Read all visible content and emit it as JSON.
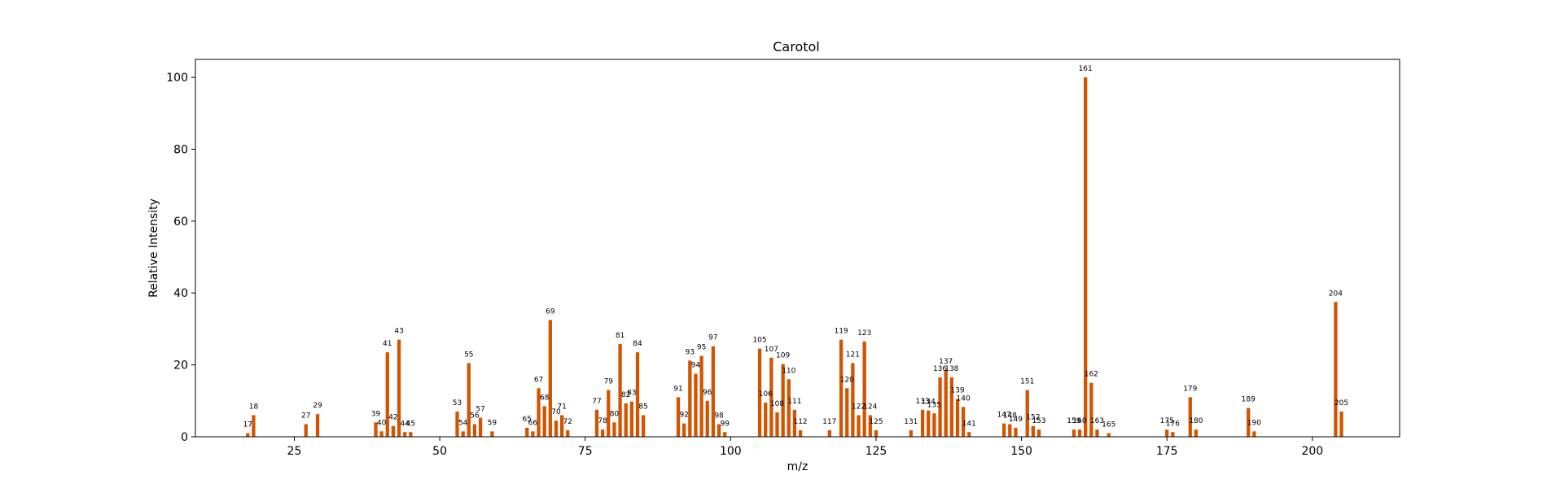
{
  "chart_data": {
    "type": "bar",
    "title": "Carotol",
    "xlabel": "m/z",
    "ylabel": "Relative Intensity",
    "xlim": [
      8,
      215
    ],
    "ylim": [
      0,
      105
    ],
    "xticks": [
      25,
      50,
      75,
      100,
      125,
      150,
      175,
      200
    ],
    "yticks": [
      0,
      20,
      40,
      60,
      80,
      100
    ],
    "grid": false,
    "bar_color": "#d35400",
    "series": [
      {
        "x": [
          17,
          18,
          27,
          29,
          39,
          40,
          41,
          42,
          43,
          44,
          45,
          53,
          54,
          55,
          56,
          57,
          59,
          65,
          66,
          67,
          68,
          69,
          70,
          71,
          72,
          77,
          78,
          79,
          80,
          81,
          82,
          83,
          84,
          85,
          91,
          92,
          93,
          94,
          95,
          96,
          97,
          98,
          99,
          105,
          106,
          107,
          108,
          109,
          110,
          111,
          112,
          117,
          119,
          120,
          121,
          122,
          123,
          124,
          125,
          131,
          133,
          134,
          135,
          136,
          137,
          138,
          139,
          140,
          141,
          147,
          148,
          149,
          151,
          152,
          153,
          159,
          160,
          161,
          162,
          163,
          165,
          175,
          176,
          179,
          180,
          189,
          190,
          204,
          205
        ],
        "values": [
          1,
          6,
          3.5,
          6.3,
          4,
          1.5,
          23.5,
          3,
          27,
          1.3,
          1.3,
          7,
          1.5,
          20.5,
          3.5,
          5.3,
          1.5,
          2.5,
          1.5,
          13.5,
          8.5,
          32.5,
          4.5,
          6,
          1.8,
          7.5,
          2,
          13,
          4,
          25.8,
          9.3,
          9.8,
          23.5,
          6,
          11,
          3.7,
          21.2,
          17.5,
          22.5,
          10,
          25.2,
          3.5,
          1.3,
          24.5,
          9.5,
          22,
          6.8,
          20.2,
          16,
          7.5,
          1.8,
          1.8,
          27,
          13.5,
          20.5,
          6,
          26.5,
          6,
          1.8,
          1.8,
          7.5,
          7.3,
          6.5,
          16.5,
          18.5,
          16.5,
          10.5,
          8.3,
          1.3,
          3.7,
          3.5,
          2.5,
          13,
          3,
          2,
          2,
          2,
          100,
          15,
          2,
          1,
          2,
          1.3,
          11,
          2,
          8,
          1.5,
          37.5,
          7
        ]
      }
    ]
  }
}
